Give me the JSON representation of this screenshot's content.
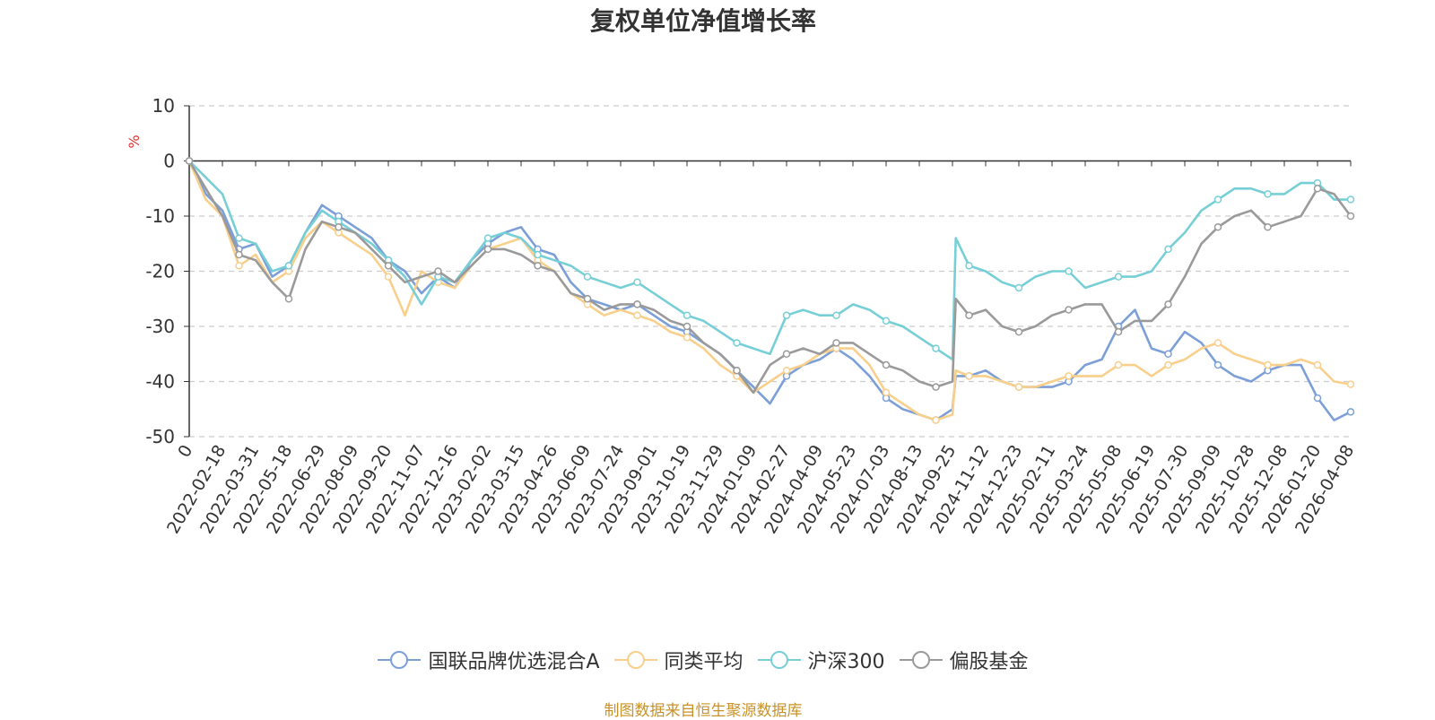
{
  "source_note": "制图数据来自恒生聚源数据库",
  "chart_data": {
    "type": "line",
    "title": "复权单位净值增长率",
    "ylabel": "%",
    "xlabel": "",
    "ylim": [
      -50,
      10
    ],
    "yticks": [
      10,
      0,
      -10,
      -20,
      -30,
      -40,
      -50
    ],
    "grid": true,
    "legend_position": "bottom-center",
    "x_tick_labels": [
      "0",
      "2022-02-18",
      "2022-03-31",
      "2022-05-18",
      "2022-06-29",
      "2022-08-09",
      "2022-09-20",
      "2022-11-07",
      "2022-12-16",
      "2023-02-02",
      "2023-03-15",
      "2023-04-26",
      "2023-06-09",
      "2023-07-24",
      "2023-09-01",
      "2023-10-19",
      "2023-11-29",
      "2024-01-09",
      "2024-02-27",
      "2024-04-09",
      "2024-05-23",
      "2024-07-03",
      "2024-08-13",
      "2024-09-25",
      "2024-11-12",
      "2024-12-23",
      "2025-02-11",
      "2025-03-24",
      "2025-05-08",
      "2025-06-19",
      "2025-07-30",
      "2025-09-09",
      "2025-10-28",
      "2025-12-08",
      "2026-01-20",
      "2026-04-08"
    ],
    "x": [
      0,
      0.5,
      1,
      1.5,
      2,
      2.5,
      3,
      3.5,
      4,
      4.5,
      5,
      5.5,
      6,
      6.5,
      7,
      7.5,
      8,
      8.5,
      9,
      9.5,
      10,
      10.5,
      11,
      11.5,
      12,
      12.5,
      13,
      13.5,
      14,
      14.5,
      15,
      15.5,
      16,
      16.5,
      17,
      17.5,
      18,
      18.5,
      19,
      19.5,
      20,
      20.5,
      21,
      21.5,
      22,
      22.5,
      23,
      23.1,
      23.5,
      24,
      24.5,
      25,
      25.5,
      26,
      26.5,
      27,
      27.5,
      28,
      28.5,
      29,
      29.5,
      30,
      30.5,
      31,
      31.5,
      32,
      32.5,
      33,
      33.5,
      34,
      34.5,
      35
    ],
    "series": [
      {
        "name": "国联品牌优选混合A",
        "color": "#7b9fd6",
        "values": [
          0,
          -6,
          -9,
          -16,
          -15,
          -21,
          -19,
          -13,
          -8,
          -10,
          -12,
          -14,
          -18,
          -20,
          -24,
          -21,
          -23,
          -18,
          -15,
          -13,
          -12,
          -16,
          -17,
          -22,
          -25,
          -26,
          -27,
          -26,
          -28,
          -30,
          -31,
          -33,
          -35,
          -38,
          -41,
          -44,
          -39,
          -37,
          -36,
          -34,
          -36,
          -39,
          -43,
          -45,
          -46,
          -47,
          -45,
          -39,
          -39,
          -38,
          -40,
          -41,
          -41,
          -41,
          -40,
          -37,
          -36,
          -30,
          -27,
          -34,
          -35,
          -31,
          -33,
          -37,
          -39,
          -40,
          -38,
          -37,
          -37,
          -43,
          -47,
          -45.5
        ]
      },
      {
        "name": "同类平均",
        "color": "#f8cf8b",
        "values": [
          0,
          -7,
          -10,
          -19,
          -17,
          -22,
          -20,
          -14,
          -11,
          -13,
          -15,
          -17,
          -21,
          -28,
          -20,
          -22,
          -23,
          -19,
          -16,
          -15,
          -14,
          -18,
          -20,
          -24,
          -26,
          -28,
          -27,
          -28,
          -29,
          -31,
          -32,
          -34,
          -37,
          -39,
          -42,
          -40,
          -38,
          -37,
          -35,
          -34,
          -34,
          -37,
          -42,
          -44,
          -46,
          -47,
          -46,
          -38,
          -39,
          -39,
          -40,
          -41,
          -41,
          -40,
          -39,
          -39,
          -39,
          -37,
          -37,
          -39,
          -37,
          -36,
          -34,
          -33,
          -35,
          -36,
          -37,
          -37,
          -36,
          -37,
          -40,
          -40.5
        ]
      },
      {
        "name": "沪深300",
        "color": "#76cfd6",
        "values": [
          0,
          -3,
          -6,
          -14,
          -15,
          -20,
          -19,
          -13,
          -9,
          -11,
          -13,
          -15,
          -18,
          -21,
          -26,
          -21,
          -22,
          -18,
          -14,
          -13,
          -14,
          -17,
          -18,
          -19,
          -21,
          -22,
          -23,
          -22,
          -24,
          -26,
          -28,
          -29,
          -31,
          -33,
          -34,
          -35,
          -28,
          -27,
          -28,
          -28,
          -26,
          -27,
          -29,
          -30,
          -32,
          -34,
          -36,
          -14,
          -19,
          -20,
          -22,
          -23,
          -21,
          -20,
          -20,
          -23,
          -22,
          -21,
          -21,
          -20,
          -16,
          -13,
          -9,
          -7,
          -5,
          -5,
          -6,
          -6,
          -4,
          -4,
          -7,
          -7
        ]
      },
      {
        "name": "偏股基金",
        "color": "#9a9a9a",
        "values": [
          0,
          -5,
          -10,
          -17,
          -18,
          -22,
          -25,
          -16,
          -11,
          -12,
          -13,
          -16,
          -19,
          -22,
          -21,
          -20,
          -22,
          -19,
          -16,
          -16,
          -17,
          -19,
          -20,
          -24,
          -25,
          -27,
          -26,
          -26,
          -27,
          -29,
          -30,
          -33,
          -35,
          -38,
          -42,
          -37,
          -35,
          -34,
          -35,
          -33,
          -33,
          -35,
          -37,
          -38,
          -40,
          -41,
          -40,
          -25,
          -28,
          -27,
          -30,
          -31,
          -30,
          -28,
          -27,
          -26,
          -26,
          -31,
          -29,
          -29,
          -26,
          -21,
          -15,
          -12,
          -10,
          -9,
          -12,
          -11,
          -10,
          -5,
          -6,
          -10
        ]
      }
    ]
  }
}
